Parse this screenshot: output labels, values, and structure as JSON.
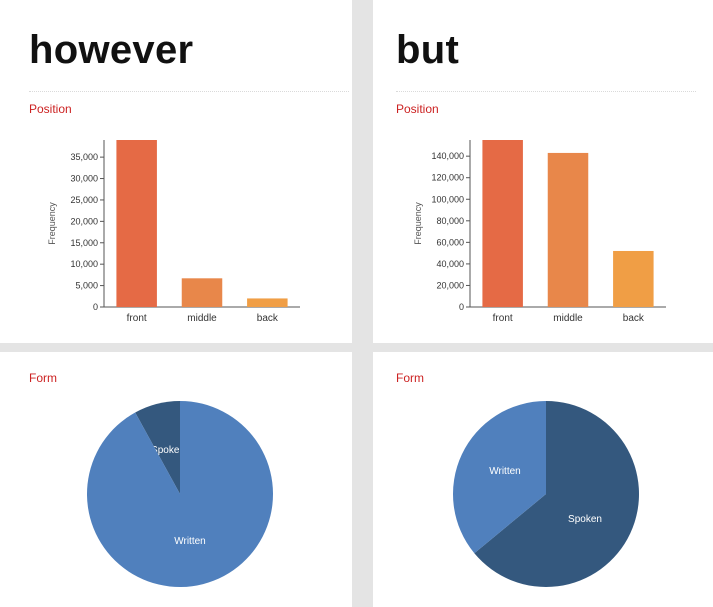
{
  "panels": [
    {
      "word": "however",
      "position_label": "Position",
      "form_label": "Form"
    },
    {
      "word": "but",
      "position_label": "Position",
      "form_label": "Form"
    }
  ],
  "chart_data": [
    {
      "type": "bar",
      "title": "Position",
      "ylabel": "Frequency",
      "xlabel": "",
      "categories": [
        "front",
        "middle",
        "back"
      ],
      "values": [
        39000,
        6700,
        2000
      ],
      "ylim": [
        0,
        39000
      ],
      "yticks": [
        0,
        5000,
        10000,
        15000,
        20000,
        25000,
        30000,
        35000
      ],
      "ytick_labels": [
        "0",
        "5,000",
        "10,000",
        "15,000",
        "20,000",
        "25,000",
        "30,000",
        "35,000"
      ],
      "colors": [
        "#e56a45",
        "#e8874a",
        "#f09e45"
      ],
      "grid": false
    },
    {
      "type": "bar",
      "title": "Position",
      "ylabel": "Frequency",
      "xlabel": "",
      "categories": [
        "front",
        "middle",
        "back"
      ],
      "values": [
        155000,
        143000,
        52000
      ],
      "ylim": [
        0,
        155000
      ],
      "yticks": [
        0,
        20000,
        40000,
        60000,
        80000,
        100000,
        120000,
        140000
      ],
      "ytick_labels": [
        "0",
        "20,000",
        "40,000",
        "60,000",
        "80,000",
        "100,000",
        "120,000",
        "140,000"
      ],
      "colors": [
        "#e56a45",
        "#e8874a",
        "#f09e45"
      ],
      "grid": false
    },
    {
      "type": "pie",
      "title": "Form",
      "categories": [
        "Spoken",
        "Written"
      ],
      "values": [
        0.08,
        0.92
      ],
      "colors": [
        "#34587e",
        "#5080bd"
      ]
    },
    {
      "type": "pie",
      "title": "Form",
      "categories": [
        "Spoken",
        "Written"
      ],
      "values": [
        0.64,
        0.36
      ],
      "colors": [
        "#34587e",
        "#5080bd"
      ]
    }
  ]
}
